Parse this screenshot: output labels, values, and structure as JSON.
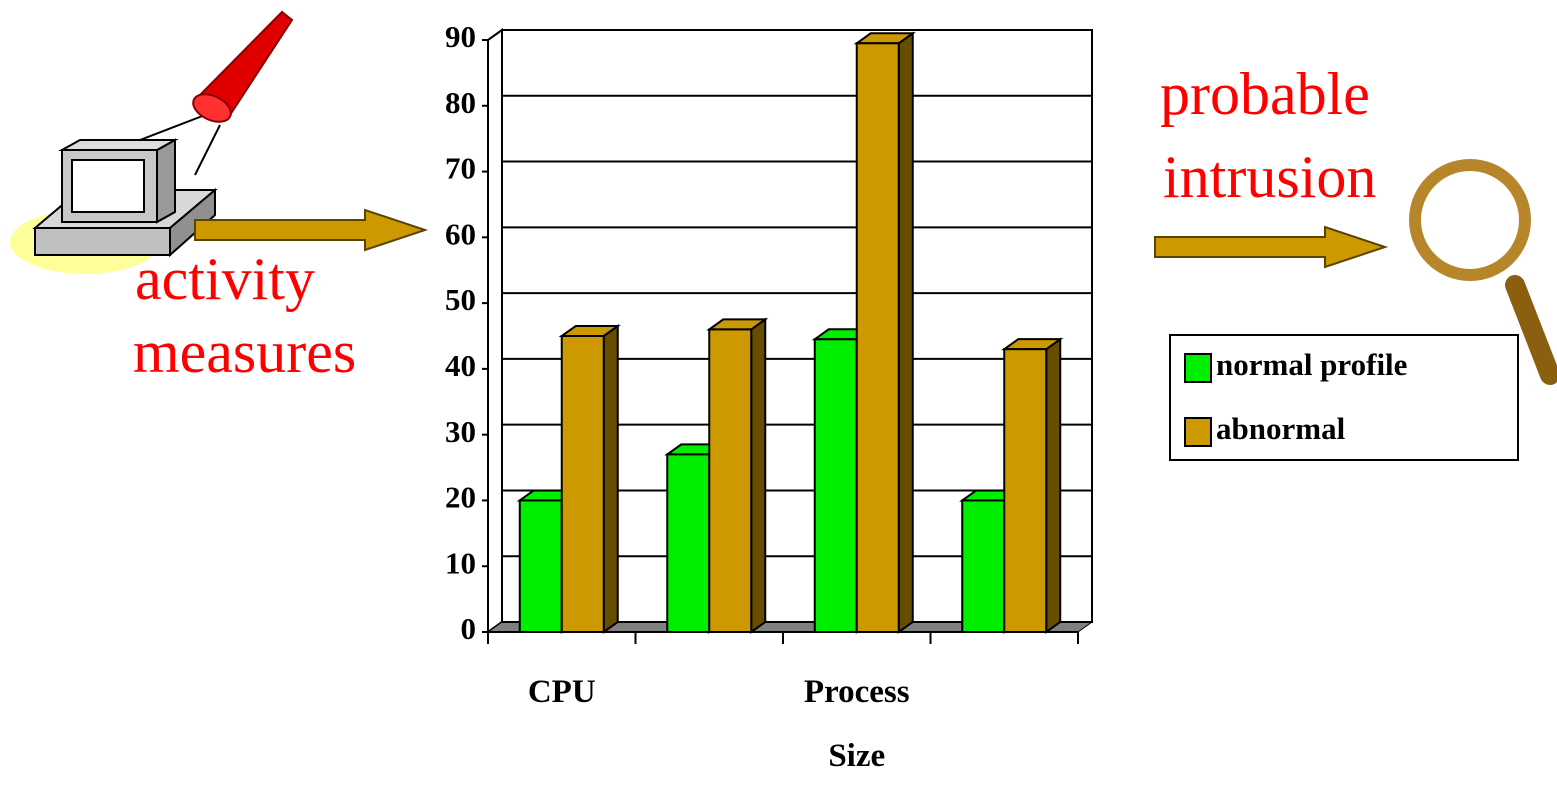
{
  "chart_data": {
    "type": "bar3d",
    "annotations": [
      "activity",
      "measures",
      "probable",
      "intrusion"
    ],
    "categories": [
      "CPU",
      null,
      "Process Size",
      null
    ],
    "series": [
      {
        "name": "normal profile",
        "color": "#00ee00",
        "values": [
          20,
          27,
          44.5,
          20
        ]
      },
      {
        "name": "abnormal",
        "color": "#cc9900",
        "values": [
          45,
          46,
          89.5,
          43
        ]
      }
    ],
    "ylim": [
      0,
      90
    ],
    "yticks": [
      0,
      10,
      20,
      30,
      40,
      50,
      60,
      70,
      80,
      90
    ],
    "grid": true,
    "legend": "right"
  }
}
